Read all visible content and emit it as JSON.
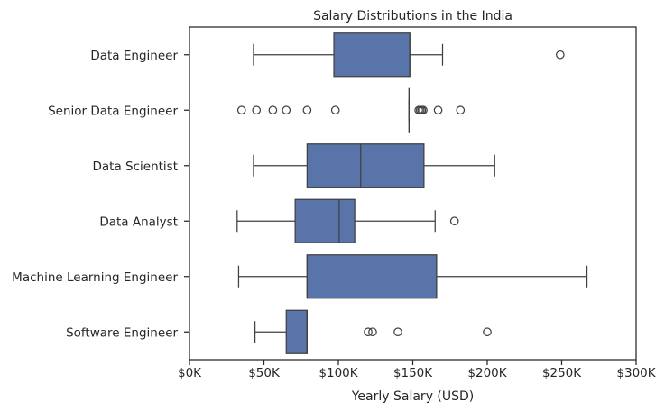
{
  "chart_data": {
    "type": "boxplot",
    "title": "Salary Distributions in the India",
    "xlabel": "Yearly Salary (USD)",
    "ylabel": "",
    "xlim": [
      0,
      300000
    ],
    "x_ticks": [
      0,
      50000,
      100000,
      150000,
      200000,
      250000,
      300000
    ],
    "x_tick_labels": [
      "$0K",
      "$50K",
      "$100K",
      "$150K",
      "$200K",
      "$250K",
      "$300K"
    ],
    "grid": false,
    "box_color": "#5874a8",
    "line_color": "#404040",
    "categories": [
      "Data Engineer",
      "Senior Data Engineer",
      "Data Scientist",
      "Data Analyst",
      "Machine Learning Engineer",
      "Software Engineer"
    ],
    "boxes": [
      {
        "whisker_low": 43000,
        "q1": 97000,
        "median": 148000,
        "q3": 148000,
        "whisker_high": 170000,
        "outliers": [
          249000
        ]
      },
      {
        "whisker_low": 147500,
        "q1": 147500,
        "median": 147500,
        "q3": 147500,
        "whisker_high": 147500,
        "outliers": [
          35000,
          45000,
          56000,
          65000,
          79000,
          98000,
          154000,
          155000,
          156000,
          157000,
          167000,
          182000
        ]
      },
      {
        "whisker_low": 43000,
        "q1": 79000,
        "median": 115000,
        "q3": 157500,
        "whisker_high": 205000,
        "outliers": []
      },
      {
        "whisker_low": 32000,
        "q1": 71000,
        "median": 100500,
        "q3": 111000,
        "whisker_high": 165000,
        "outliers": [
          178000
        ]
      },
      {
        "whisker_low": 33000,
        "q1": 79000,
        "median": 79000,
        "q3": 166000,
        "whisker_high": 267000,
        "outliers": []
      },
      {
        "whisker_low": 44000,
        "q1": 65000,
        "median": 79000,
        "q3": 79000,
        "whisker_high": 79000,
        "outliers": [
          120000,
          123000,
          140000,
          200000
        ]
      }
    ]
  }
}
